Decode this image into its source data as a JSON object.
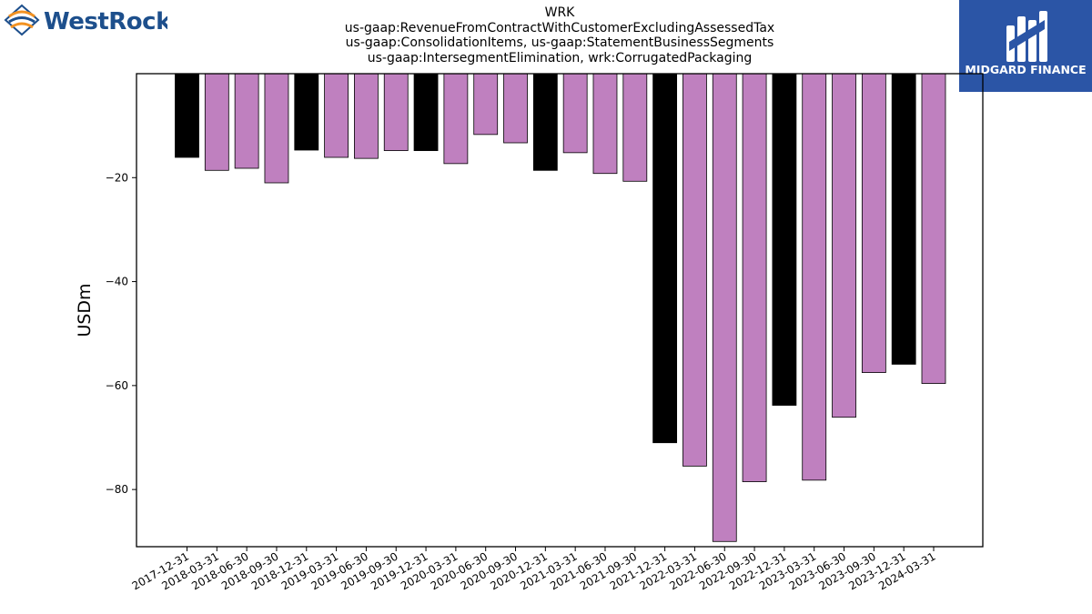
{
  "logos": {
    "left_text": "WestRock",
    "right_text": "MIDGARD FINANCE"
  },
  "colors": {
    "highlight_bar": "#000000",
    "regular_bar": "#bf80bf",
    "westrock_blue": "#1d4f8c",
    "westrock_orange": "#f29222",
    "midgard_bg": "#2b55a6"
  },
  "chart_data": {
    "type": "bar",
    "title_lines": [
      "WRK",
      "us-gaap:RevenueFromContractWithCustomerExcludingAssessedTax",
      "us-gaap:ConsolidationItems, us-gaap:StatementBusinessSegments",
      "us-gaap:IntersegmentElimination, wrk:CorrugatedPackaging"
    ],
    "ylabel": "USDm",
    "xlabel": "",
    "ylim": [
      -91,
      0
    ],
    "yticks": [
      -20,
      -40,
      -60,
      -80
    ],
    "grid": false,
    "categories": [
      "2017-12-31",
      "2018-03-31",
      "2018-06-30",
      "2018-09-30",
      "2018-12-31",
      "2019-03-31",
      "2019-06-30",
      "2019-09-30",
      "2019-12-31",
      "2020-03-31",
      "2020-06-30",
      "2020-09-30",
      "2020-12-31",
      "2021-03-31",
      "2021-06-30",
      "2021-09-30",
      "2021-12-31",
      "2022-03-31",
      "2022-06-30",
      "2022-09-30",
      "2022-12-31",
      "2023-03-31",
      "2023-06-30",
      "2023-09-30",
      "2023-12-31",
      "2024-03-31"
    ],
    "values": [
      -16.1,
      -18.6,
      -18.2,
      -21.0,
      -14.7,
      -16.1,
      -16.3,
      -14.8,
      -14.8,
      -17.3,
      -11.7,
      -13.3,
      -18.6,
      -15.2,
      -19.2,
      -20.7,
      -71.0,
      -75.5,
      -90.0,
      -78.5,
      -63.8,
      -78.2,
      -66.1,
      -57.5,
      -55.9,
      -59.6
    ],
    "highlighted_categories": [
      "2017-12-31",
      "2018-12-31",
      "2019-12-31",
      "2020-12-31",
      "2021-12-31",
      "2022-12-31",
      "2023-12-31"
    ]
  }
}
